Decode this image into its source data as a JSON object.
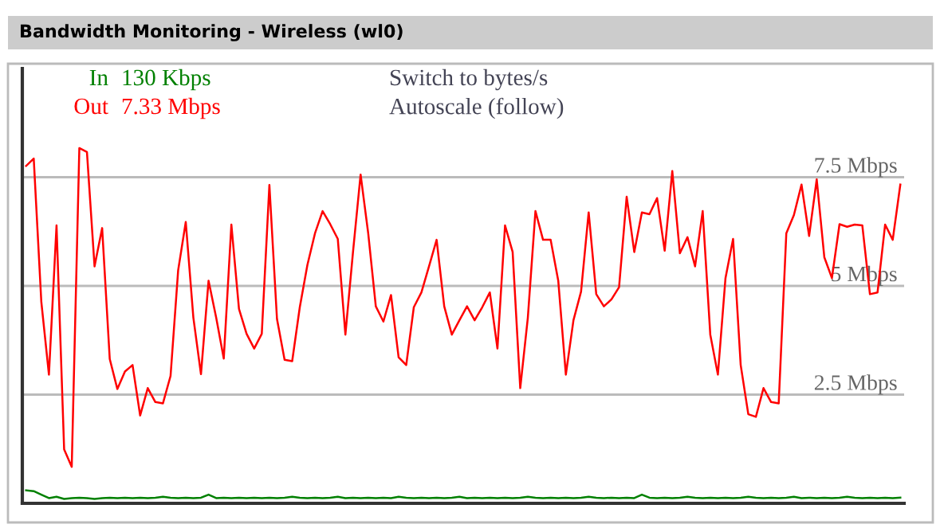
{
  "chart_data": {
    "type": "line",
    "title": "Bandwidth Monitoring - Wireless (wl0)",
    "annotations": [
      "130 Kbps",
      "7.33 Mbps",
      "Switch to bytes/s",
      "Autoscale (follow)"
    ],
    "categories": [
      null,
      null,
      null,
      null,
      null,
      null,
      null,
      null,
      null,
      null,
      null,
      null,
      null,
      null,
      null,
      null,
      null,
      null,
      null,
      null,
      null,
      null,
      null,
      null,
      null,
      null,
      null,
      null,
      null,
      null,
      null,
      null,
      null,
      null,
      null,
      null,
      null,
      null,
      null,
      null,
      null,
      null,
      null,
      null,
      null,
      null,
      null,
      null,
      null,
      null,
      null,
      null,
      null,
      null,
      null,
      null,
      null,
      null,
      null,
      null,
      null,
      null,
      null,
      null,
      null,
      null,
      null,
      null,
      null,
      null,
      null,
      null,
      null,
      null,
      null,
      null,
      null,
      null,
      null,
      null,
      null,
      null,
      null,
      null,
      null,
      null,
      null,
      null,
      null,
      null,
      null,
      null,
      null,
      null,
      null,
      null,
      null,
      null,
      null,
      null,
      null,
      null,
      null,
      null,
      null,
      null,
      null,
      null,
      null,
      null,
      null,
      null,
      null,
      null,
      null,
      null
    ],
    "series": [
      {
        "name": "In",
        "color": "#008000",
        "values": [
          0.3,
          0.28,
          0.2,
          0.12,
          0.15,
          0.1,
          0.12,
          0.13,
          0.12,
          0.1,
          0.12,
          0.13,
          0.12,
          0.13,
          0.12,
          0.13,
          0.12,
          0.13,
          0.15,
          0.13,
          0.12,
          0.13,
          0.12,
          0.13,
          0.2,
          0.12,
          0.13,
          0.12,
          0.13,
          0.12,
          0.13,
          0.12,
          0.13,
          0.12,
          0.13,
          0.15,
          0.13,
          0.12,
          0.13,
          0.12,
          0.13,
          0.15,
          0.12,
          0.13,
          0.12,
          0.13,
          0.12,
          0.13,
          0.12,
          0.15,
          0.13,
          0.12,
          0.13,
          0.12,
          0.13,
          0.12,
          0.13,
          0.15,
          0.12,
          0.13,
          0.12,
          0.13,
          0.12,
          0.13,
          0.12,
          0.13,
          0.15,
          0.13,
          0.12,
          0.13,
          0.12,
          0.13,
          0.12,
          0.13,
          0.15,
          0.13,
          0.12,
          0.13,
          0.12,
          0.13,
          0.12,
          0.2,
          0.13,
          0.12,
          0.13,
          0.12,
          0.13,
          0.15,
          0.13,
          0.12,
          0.13,
          0.12,
          0.13,
          0.12,
          0.13,
          0.15,
          0.13,
          0.12,
          0.13,
          0.12,
          0.13,
          0.15,
          0.12,
          0.13,
          0.12,
          0.13,
          0.12,
          0.13,
          0.15,
          0.13,
          0.12,
          0.13,
          0.12,
          0.13,
          0.12,
          0.13
        ]
      },
      {
        "name": "Out",
        "color": "#ff0000",
        "values": [
          7.76,
          7.93,
          4.63,
          2.96,
          6.39,
          1.24,
          0.84,
          8.17,
          8.08,
          5.45,
          6.33,
          3.32,
          2.63,
          3.03,
          3.18,
          2.02,
          2.65,
          2.33,
          2.3,
          2.93,
          5.36,
          6.47,
          4.27,
          2.97,
          5.12,
          4.27,
          3.33,
          6.41,
          4.47,
          3.9,
          3.56,
          3.9,
          7.32,
          4.24,
          3.3,
          3.27,
          4.51,
          5.48,
          6.21,
          6.72,
          6.42,
          6.08,
          3.88,
          5.78,
          7.56,
          6.21,
          4.53,
          4.18,
          4.79,
          3.36,
          3.18,
          4.51,
          4.85,
          5.45,
          6.06,
          4.53,
          3.88,
          4.21,
          4.53,
          4.21,
          4.51,
          4.85,
          3.56,
          6.39,
          5.78,
          2.65,
          4.27,
          6.72,
          6.06,
          6.06,
          5.12,
          2.96,
          4.21,
          4.87,
          6.69,
          4.81,
          4.53,
          4.69,
          4.97,
          7.05,
          5.78,
          6.69,
          6.65,
          7.02,
          5.81,
          7.64,
          5.75,
          6.12,
          5.45,
          6.72,
          3.88,
          2.96,
          5.18,
          6.08,
          3.18,
          2.05,
          1.99,
          2.65,
          2.33,
          2.3,
          6.21,
          6.63,
          7.33,
          6.15,
          7.45,
          5.66,
          5.18,
          6.42,
          6.36,
          6.41,
          6.39,
          4.81,
          4.85,
          6.41,
          6.06,
          7.33
        ]
      }
    ],
    "ylim": [
      0,
      10
    ],
    "yticks": [
      {
        "value": 2.5,
        "label": "2.5 Mbps"
      },
      {
        "value": 5,
        "label": "5 Mbps"
      },
      {
        "value": 7.5,
        "label": "7.5 Mbps"
      }
    ],
    "grid": "y",
    "legend": "top left",
    "tick_labels": "y",
    "marker": "none",
    "line_style": "solid"
  }
}
